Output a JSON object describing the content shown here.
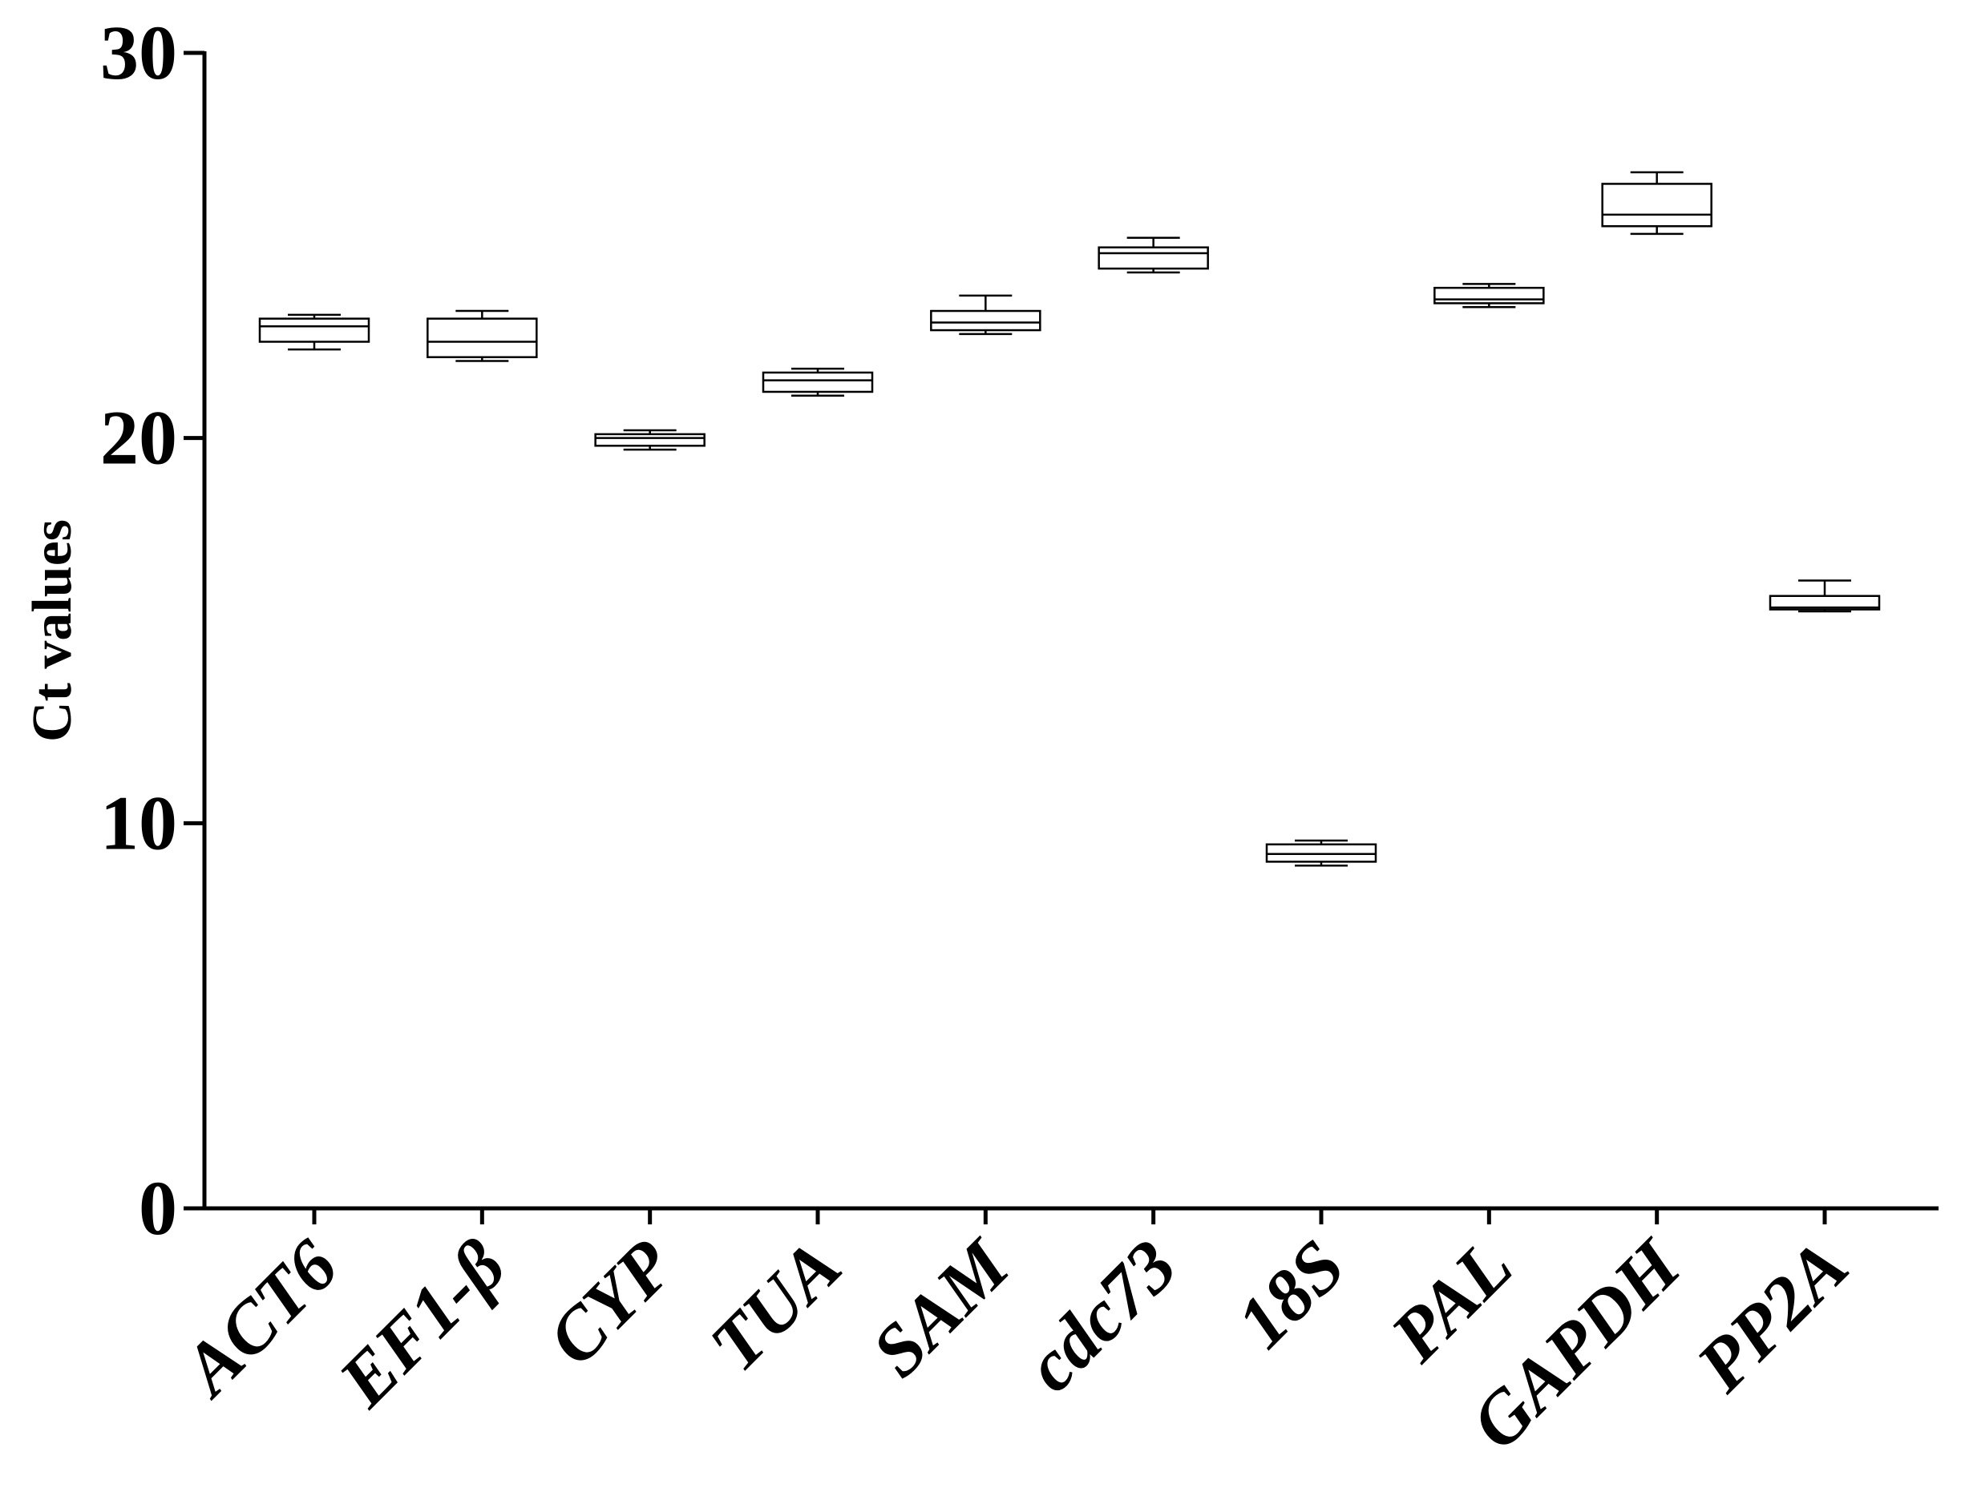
{
  "chart_data": {
    "type": "box",
    "title": "",
    "xlabel": "",
    "ylabel": "Ct values",
    "ylim": [
      0,
      30
    ],
    "yticks": [
      "0",
      "10",
      "20",
      "30"
    ],
    "grid": false,
    "categories": [
      "ACT6",
      "EF1-β",
      "CYP",
      "TUA",
      "SAM",
      "cdc73",
      "18S",
      "PAL",
      "GAPDH",
      "PP2A"
    ],
    "boxes": [
      {
        "label": "ACT6",
        "min": 22.3,
        "q1": 22.5,
        "median": 22.9,
        "q3": 23.1,
        "max": 23.2
      },
      {
        "label": "EF1-β",
        "min": 22.0,
        "q1": 22.1,
        "median": 22.5,
        "q3": 23.1,
        "max": 23.3
      },
      {
        "label": "CYP",
        "min": 19.7,
        "q1": 19.8,
        "median": 20.0,
        "q3": 20.1,
        "max": 20.2
      },
      {
        "label": "TUA",
        "min": 21.1,
        "q1": 21.2,
        "median": 21.5,
        "q3": 21.7,
        "max": 21.8
      },
      {
        "label": "SAM",
        "min": 22.7,
        "q1": 22.8,
        "median": 23.0,
        "q3": 23.3,
        "max": 23.7
      },
      {
        "label": "cdc73",
        "min": 24.3,
        "q1": 24.4,
        "median": 24.8,
        "q3": 24.95,
        "max": 25.2
      },
      {
        "label": "18S",
        "min": 8.9,
        "q1": 9.0,
        "median": 9.2,
        "q3": 9.45,
        "max": 9.55
      },
      {
        "label": "PAL",
        "min": 23.4,
        "q1": 23.5,
        "median": 23.6,
        "q3": 23.9,
        "max": 24.0
      },
      {
        "label": "GAPDH",
        "min": 25.3,
        "q1": 25.5,
        "median": 25.8,
        "q3": 26.6,
        "max": 26.9
      },
      {
        "label": "PP2A",
        "min": 15.5,
        "q1": 15.55,
        "median": 15.6,
        "q3": 15.9,
        "max": 16.3
      }
    ]
  }
}
